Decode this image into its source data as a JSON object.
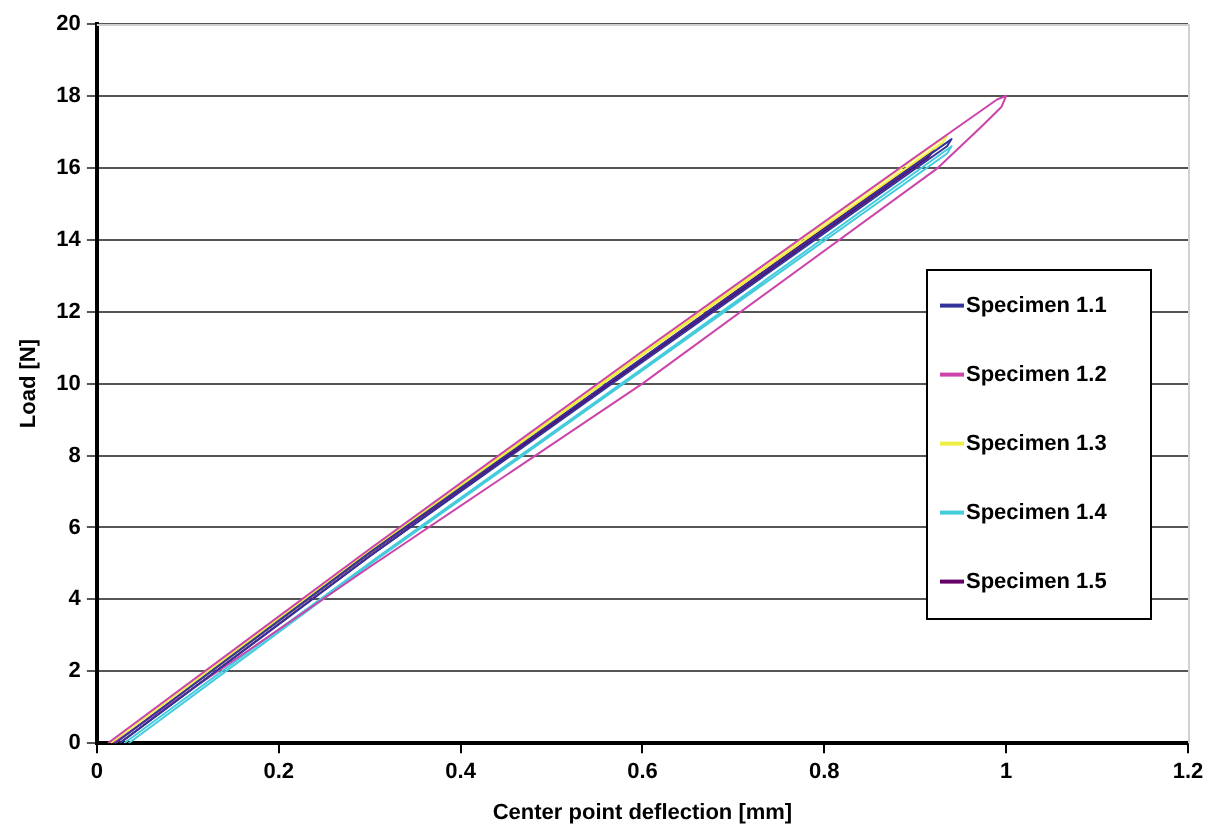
{
  "chart_data": {
    "type": "line",
    "xlabel": "Center point deflection [mm]",
    "ylabel": "Load [N]",
    "xlim": [
      0,
      1.2
    ],
    "xticks": [
      0,
      0.2,
      0.4,
      0.6,
      0.8,
      1,
      1.2
    ],
    "ylim": [
      0,
      20
    ],
    "yticks": [
      0,
      2,
      4,
      6,
      8,
      10,
      12,
      14,
      16,
      18,
      20
    ],
    "grid": "y",
    "legend": "right",
    "marker": "none",
    "line_style": "solid",
    "series": [
      {
        "name": "Specimen 1.1",
        "color": "#333399",
        "x": [
          0.02,
          0.3,
          0.6,
          0.94,
          0.935,
          0.6,
          0.3,
          0.025
        ],
        "values": [
          0,
          5.3,
          10.7,
          16.8,
          16.6,
          10.6,
          5.2,
          0
        ]
      },
      {
        "name": "Specimen 1.2",
        "color": "#cc44aa",
        "x": [
          0.012,
          0.3,
          0.6,
          0.9,
          0.99,
          1.0,
          0.995,
          0.975,
          0.925,
          0.6,
          0.3,
          0.018
        ],
        "values": [
          0,
          5.4,
          10.9,
          16.3,
          17.9,
          18,
          17.7,
          17.2,
          16,
          10,
          4.9,
          0
        ]
      },
      {
        "name": "Specimen 1.3",
        "color": "#eeee44",
        "x": [
          0.015,
          0.3,
          0.6,
          0.935,
          0.93,
          0.6,
          0.3,
          0.02
        ],
        "values": [
          0,
          5.35,
          10.85,
          16.9,
          16.7,
          10.8,
          5.3,
          0
        ]
      },
      {
        "name": "Specimen 1.4",
        "color": "#44ccdd",
        "x": [
          0.03,
          0.31,
          0.61,
          0.94,
          0.935,
          0.61,
          0.31,
          0.035
        ],
        "values": [
          0,
          5.2,
          10.6,
          16.6,
          16.4,
          10.55,
          5.15,
          0
        ]
      },
      {
        "name": "Specimen 1.5",
        "color": "#660066",
        "x": [
          0.02,
          0.3,
          0.6,
          0.92,
          0.915,
          0.6,
          0.3,
          0.025
        ],
        "values": [
          0,
          5.28,
          10.7,
          16.5,
          16.3,
          10.65,
          5.2,
          0
        ]
      }
    ]
  }
}
